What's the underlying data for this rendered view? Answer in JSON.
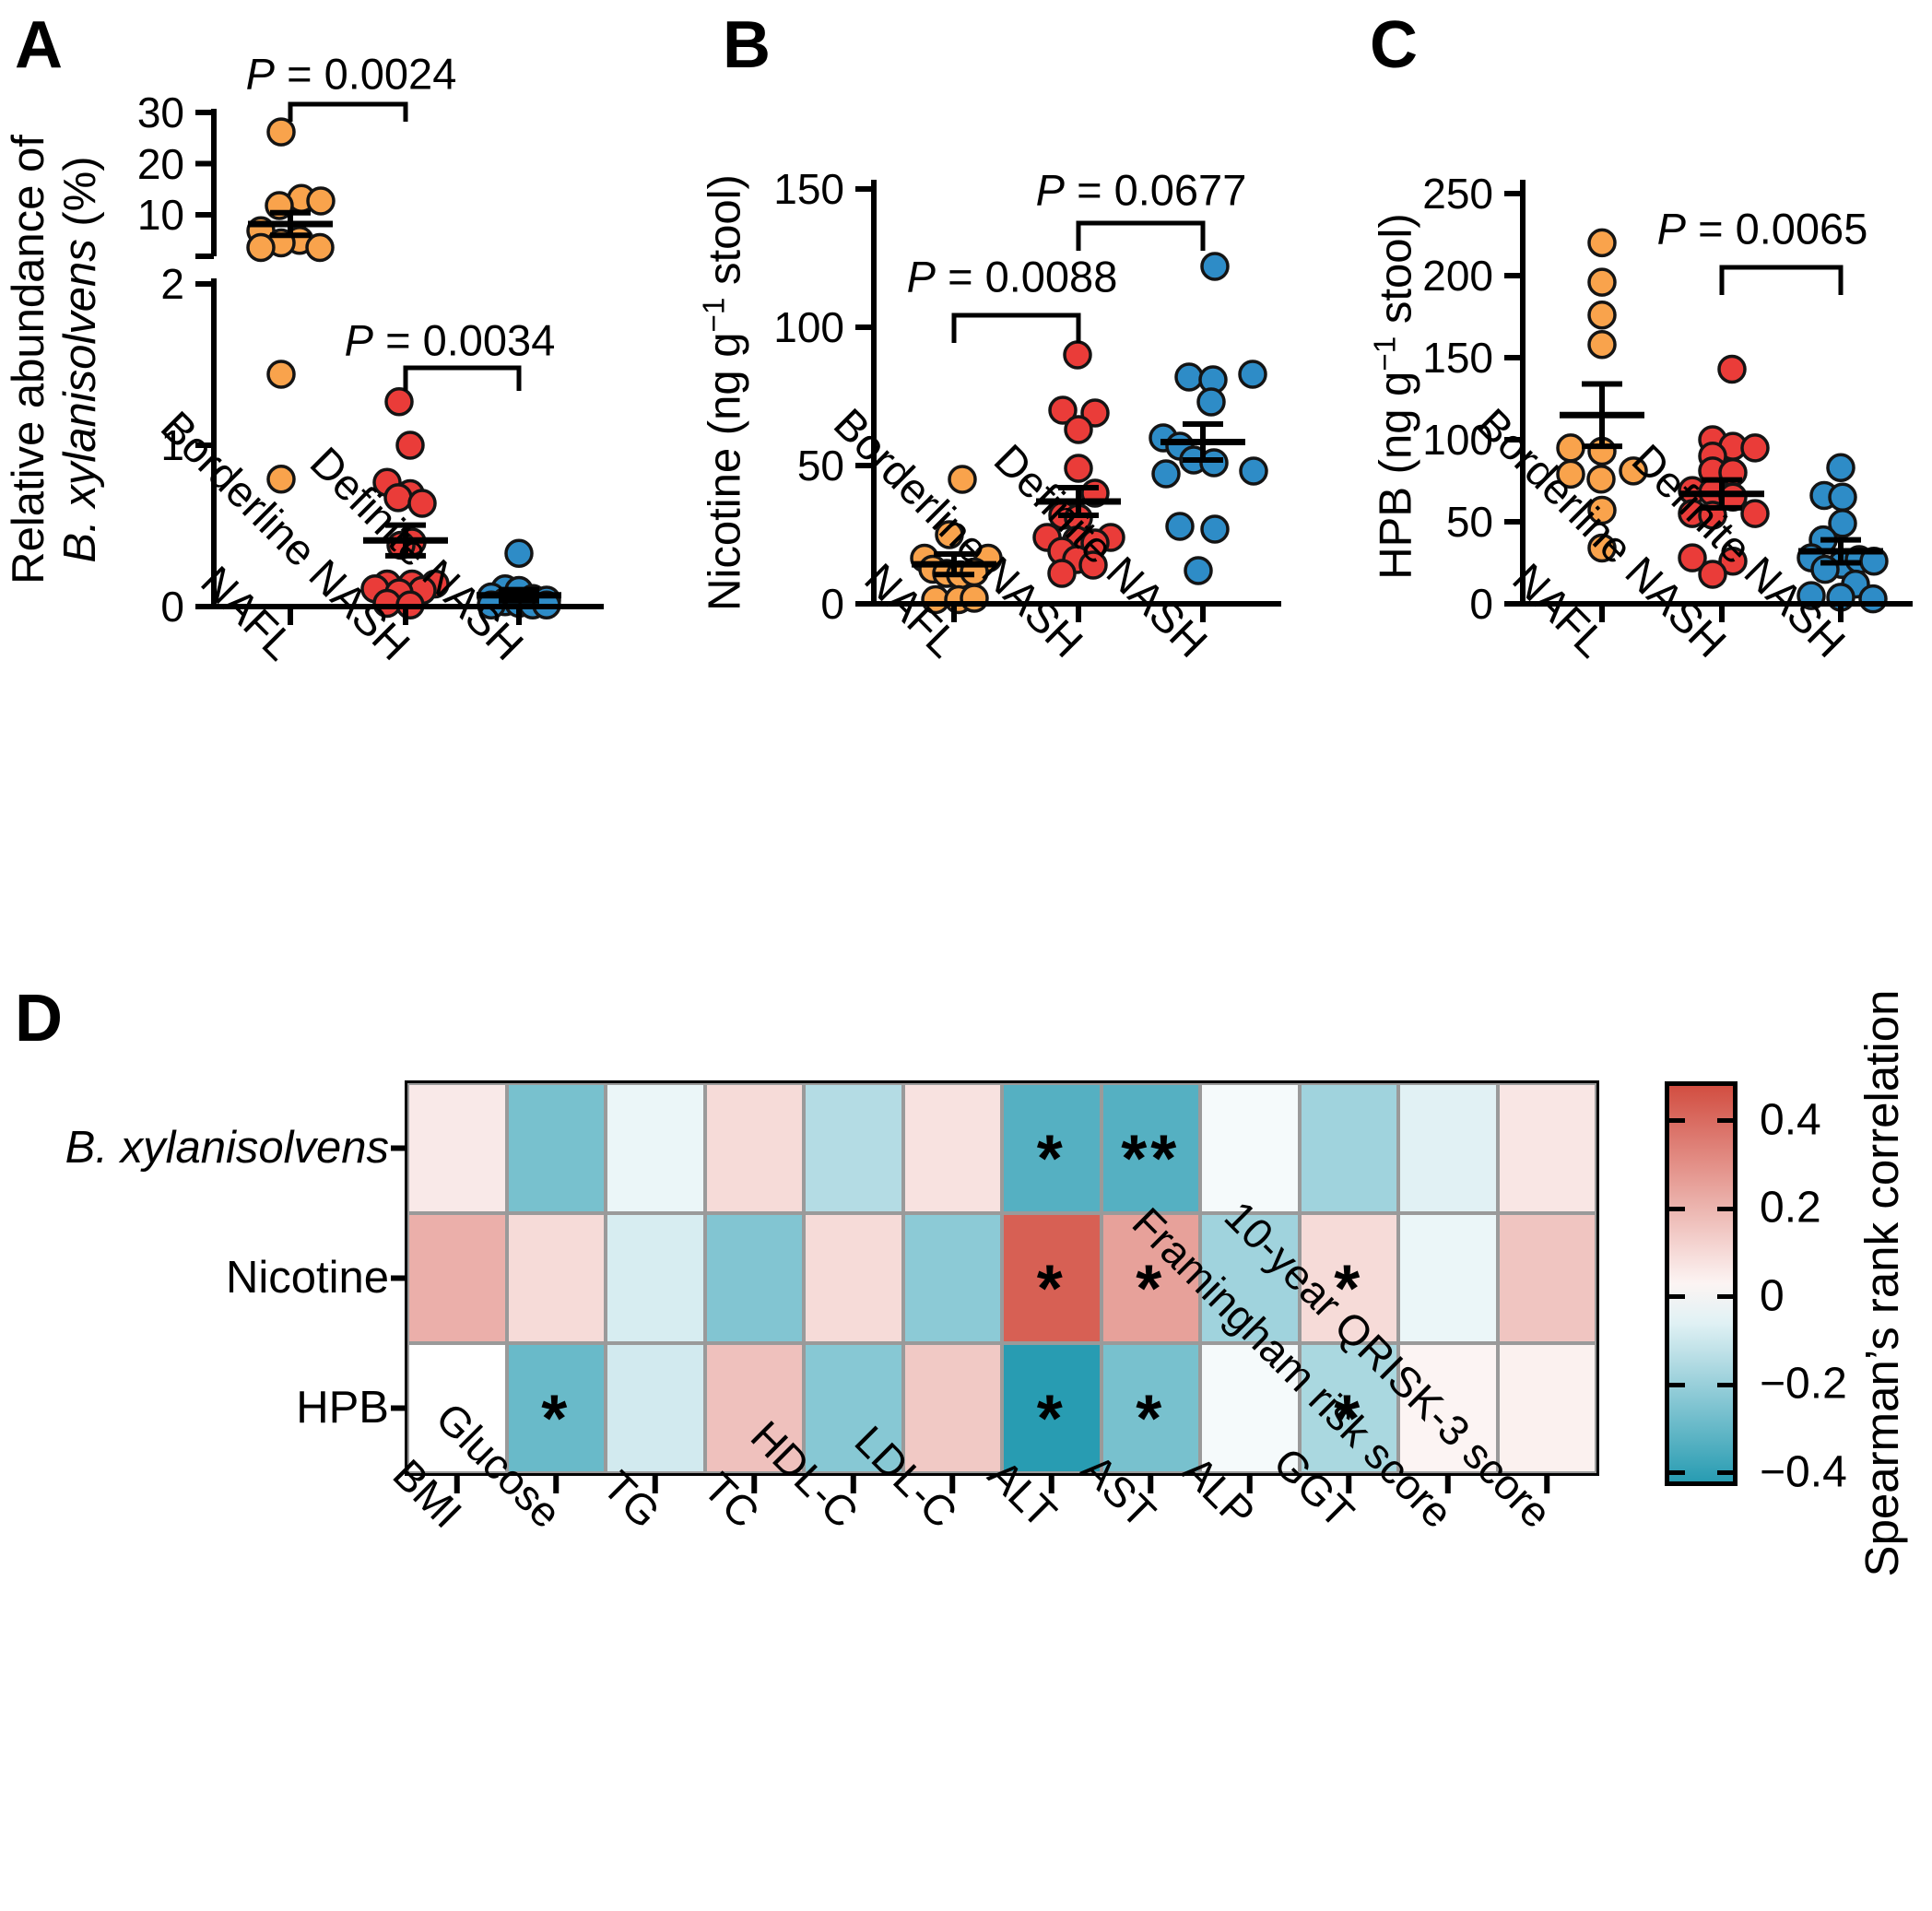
{
  "figure": {
    "panel_letters": [
      "A",
      "B",
      "C",
      "D"
    ]
  },
  "colors": {
    "nafl_orange": "#F9A34C",
    "borderline_red": "#EA3C39",
    "definite_blue": "#2E8CC7",
    "dot_stroke": "#141414",
    "axis_black": "#000000",
    "heatmap_positive_red": "#D14A3D",
    "heatmap_negative_teal": "#1E97AE",
    "heatmap_gridline": "#9A9A9A"
  },
  "chart_data": [
    {
      "type": "scatter",
      "panel": "A",
      "ylabel_line1": "Relative abundance of",
      "ylabel_italic": "B. xylanisolvens",
      "ylabel_unit": " (%)",
      "y_axis_broken": true,
      "yticks_upper": [
        [
          "30",
          30
        ],
        [
          "20",
          20
        ],
        [
          "10",
          10
        ]
      ],
      "yticks_lower": [
        [
          "2",
          2
        ],
        [
          "1",
          1
        ],
        [
          "0",
          0
        ]
      ],
      "groups": [
        {
          "label": "NAFL",
          "color": "#F9A34C",
          "mean": 8.2,
          "sem": 2.2,
          "points": [
            [
              26.2,
              -10
            ],
            [
              13.2,
              12
            ],
            [
              12.7,
              33
            ],
            [
              11.8,
              -12
            ],
            [
              6.9,
              -32
            ],
            [
              5,
              10
            ],
            [
              4.5,
              -10
            ],
            [
              3.6,
              -32
            ],
            [
              3.6,
              32
            ],
            [
              1.44,
              -10
            ],
            [
              0.79,
              -10
            ]
          ]
        },
        {
          "label": "Borderline NASH",
          "color": "#EA3C39",
          "mean": 0.41,
          "sem": 0.095,
          "points": [
            [
              1.27,
              -7
            ],
            [
              1,
              5
            ],
            [
              0.77,
              -20
            ],
            [
              0.7,
              5
            ],
            [
              0.675,
              -8
            ],
            [
              0.64,
              18
            ],
            [
              0.4,
              7
            ],
            [
              0.38,
              -5
            ],
            [
              0.14,
              -20
            ],
            [
              0.14,
              7
            ],
            [
              0.14,
              32
            ],
            [
              0.11,
              -33
            ],
            [
              0.1,
              18
            ],
            [
              0.085,
              -7
            ],
            [
              0.02,
              -20
            ],
            [
              0.01,
              5
            ]
          ]
        },
        {
          "label": "Definite NASH",
          "color": "#2E8CC7",
          "mean": 0.07,
          "sem": 0.035,
          "points": [
            [
              0.33,
              0
            ],
            [
              0.11,
              -15
            ],
            [
              0.1,
              0
            ],
            [
              0.06,
              -30
            ],
            [
              0.05,
              15
            ],
            [
              0.04,
              30
            ],
            [
              0.03,
              -15
            ],
            [
              0.02,
              0
            ],
            [
              0.01,
              15
            ],
            [
              0.01,
              -30
            ],
            [
              0.01,
              30
            ]
          ]
        }
      ],
      "comparisons": [
        {
          "p_symbol": "P",
          "p_text": "= 0.0024"
        },
        {
          "p_symbol": "P",
          "p_text": "= 0.0034"
        }
      ]
    },
    {
      "type": "scatter",
      "panel": "B",
      "ylabel_pre": "Nicotine (ng g",
      "ylabel_sup": "−1",
      "ylabel_post": " stool)",
      "ylim": [
        0,
        150
      ],
      "yticks": [
        [
          "0",
          0
        ],
        [
          "50",
          50
        ],
        [
          "100",
          100
        ],
        [
          "150",
          150
        ]
      ],
      "groups": [
        {
          "label": "NAFL",
          "color": "#F9A34C",
          "mean": 14.3,
          "sem": 3.7,
          "points": [
            [
              45,
              9
            ],
            [
              25,
              -5
            ],
            [
              16.5,
              -32
            ],
            [
              16.5,
              37
            ],
            [
              12.5,
              -23
            ],
            [
              11,
              -8
            ],
            [
              10.5,
              7
            ],
            [
              11.5,
              22
            ],
            [
              1.5,
              -20
            ],
            [
              1.5,
              5
            ],
            [
              2,
              22
            ]
          ]
        },
        {
          "label": "Borderline NASH",
          "color": "#EA3C39",
          "mean": 37,
          "sem": 5,
          "points": [
            [
              90,
              -1
            ],
            [
              70,
              -17
            ],
            [
              69,
              18
            ],
            [
              63,
              0
            ],
            [
              49,
              0
            ],
            [
              40,
              18
            ],
            [
              32,
              -17
            ],
            [
              31,
              0
            ],
            [
              24,
              -34
            ],
            [
              24,
              35
            ],
            [
              23,
              -2
            ],
            [
              22,
              18
            ],
            [
              19,
              -18
            ],
            [
              16,
              -2
            ],
            [
              14,
              16
            ],
            [
              11,
              -18
            ]
          ]
        },
        {
          "label": "Definite NASH",
          "color": "#2E8CC7",
          "mean": 58.5,
          "sem": 6.5,
          "points": [
            [
              122,
              13
            ],
            [
              83,
              54
            ],
            [
              82,
              -15
            ],
            [
              81,
              11
            ],
            [
              73,
              9
            ],
            [
              60,
              -43
            ],
            [
              57,
              -25
            ],
            [
              52,
              -10
            ],
            [
              51,
              12
            ],
            [
              47,
              -40
            ],
            [
              48,
              55
            ],
            [
              28,
              -25
            ],
            [
              27,
              13
            ],
            [
              12,
              -5
            ]
          ]
        }
      ],
      "comparisons": [
        {
          "p_symbol": "P",
          "p_text": "= 0.0088"
        },
        {
          "p_symbol": "P",
          "p_text": "= 0.0677"
        }
      ]
    },
    {
      "type": "scatter",
      "panel": "C",
      "ylabel_pre": "HPB (ng g",
      "ylabel_sup": "−1",
      "ylabel_post": " stool)",
      "ylim": [
        0,
        250
      ],
      "yticks": [
        [
          "0",
          0
        ],
        [
          "50",
          50
        ],
        [
          "100",
          100
        ],
        [
          "150",
          150
        ],
        [
          "200",
          200
        ],
        [
          "250",
          250
        ]
      ],
      "groups": [
        {
          "label": "NAFL",
          "color": "#F9A34C",
          "mean": 115,
          "sem": 19,
          "points": [
            [
              220,
              0
            ],
            [
              196,
              0
            ],
            [
              176,
              0
            ],
            [
              158,
              0
            ],
            [
              95,
              -34
            ],
            [
              93,
              0
            ],
            [
              81,
              34
            ],
            [
              79,
              -34
            ],
            [
              76,
              -1
            ],
            [
              57,
              0
            ],
            [
              34,
              0
            ]
          ]
        },
        {
          "label": "Borderline NASH",
          "color": "#EA3C39",
          "mean": 67,
          "sem": 8.5,
          "points": [
            [
              143,
              11
            ],
            [
              100,
              -10
            ],
            [
              96,
              12
            ],
            [
              95,
              36
            ],
            [
              90,
              -10
            ],
            [
              81,
              -10
            ],
            [
              80,
              12
            ],
            [
              69,
              -32
            ],
            [
              68,
              -10
            ],
            [
              65,
              12
            ],
            [
              55,
              -32
            ],
            [
              54,
              -10
            ],
            [
              55,
              36
            ],
            [
              28,
              -32
            ],
            [
              26,
              12
            ],
            [
              18,
              -10
            ]
          ]
        },
        {
          "label": "Definite NASH",
          "color": "#2E8CC7",
          "mean": 32,
          "sem": 7,
          "points": [
            [
              83,
              0
            ],
            [
              66,
              -18
            ],
            [
              65,
              2
            ],
            [
              49,
              2
            ],
            [
              39,
              -19
            ],
            [
              28,
              -32
            ],
            [
              24,
              1
            ],
            [
              21,
              -17
            ],
            [
              27,
              20
            ],
            [
              26,
              36
            ],
            [
              12,
              16
            ],
            [
              5,
              -32
            ],
            [
              4,
              0
            ],
            [
              3,
              35
            ]
          ]
        }
      ],
      "comparisons": [
        {
          "p_symbol": "P",
          "p_text": "= 0.0065"
        }
      ]
    },
    {
      "type": "heatmap",
      "panel": "D",
      "columns": [
        "BMI",
        "Glucose",
        "TG",
        "TC",
        "HDL-C",
        "LDL-C",
        "ALT",
        "AST",
        "ALP",
        "GGT",
        "Framingham risk score",
        "10-year QRISK-3 score"
      ],
      "rows": [
        {
          "label": "B. xylanisolvens",
          "italic": true,
          "values": [
            0.06,
            -0.27,
            -0.04,
            0.1,
            -0.15,
            0.08,
            -0.34,
            -0.34,
            -0.02,
            -0.19,
            -0.06,
            0.07
          ],
          "stars": [
            "",
            "",
            "",
            "",
            "",
            "",
            "*",
            "**",
            "",
            "",
            "",
            ""
          ]
        },
        {
          "label": "Nicotine",
          "italic": false,
          "values": [
            0.22,
            0.1,
            -0.08,
            -0.25,
            0.1,
            -0.23,
            0.44,
            0.26,
            -0.19,
            0.1,
            -0.04,
            0.16
          ],
          "stars": [
            "",
            "",
            "",
            "",
            "",
            "",
            "*",
            "*",
            "",
            "*",
            "",
            ""
          ]
        },
        {
          "label": "HPB",
          "italic": false,
          "values": [
            0.0,
            -0.3,
            -0.09,
            0.17,
            -0.24,
            0.15,
            -0.43,
            -0.27,
            -0.02,
            -0.17,
            0.03,
            0.04
          ],
          "stars": [
            "",
            "*",
            "",
            "",
            "",
            "",
            "*",
            "*",
            "",
            "*",
            "",
            ""
          ]
        }
      ],
      "colorbar": {
        "title": "Spearman’s rank correlation",
        "ticks": [
          "0.4",
          "0.2",
          "0",
          "−0.2",
          "−0.4"
        ],
        "tick_values": [
          0.4,
          0.2,
          0,
          -0.2,
          -0.4
        ],
        "max": 0.49,
        "min": -0.43
      }
    }
  ]
}
